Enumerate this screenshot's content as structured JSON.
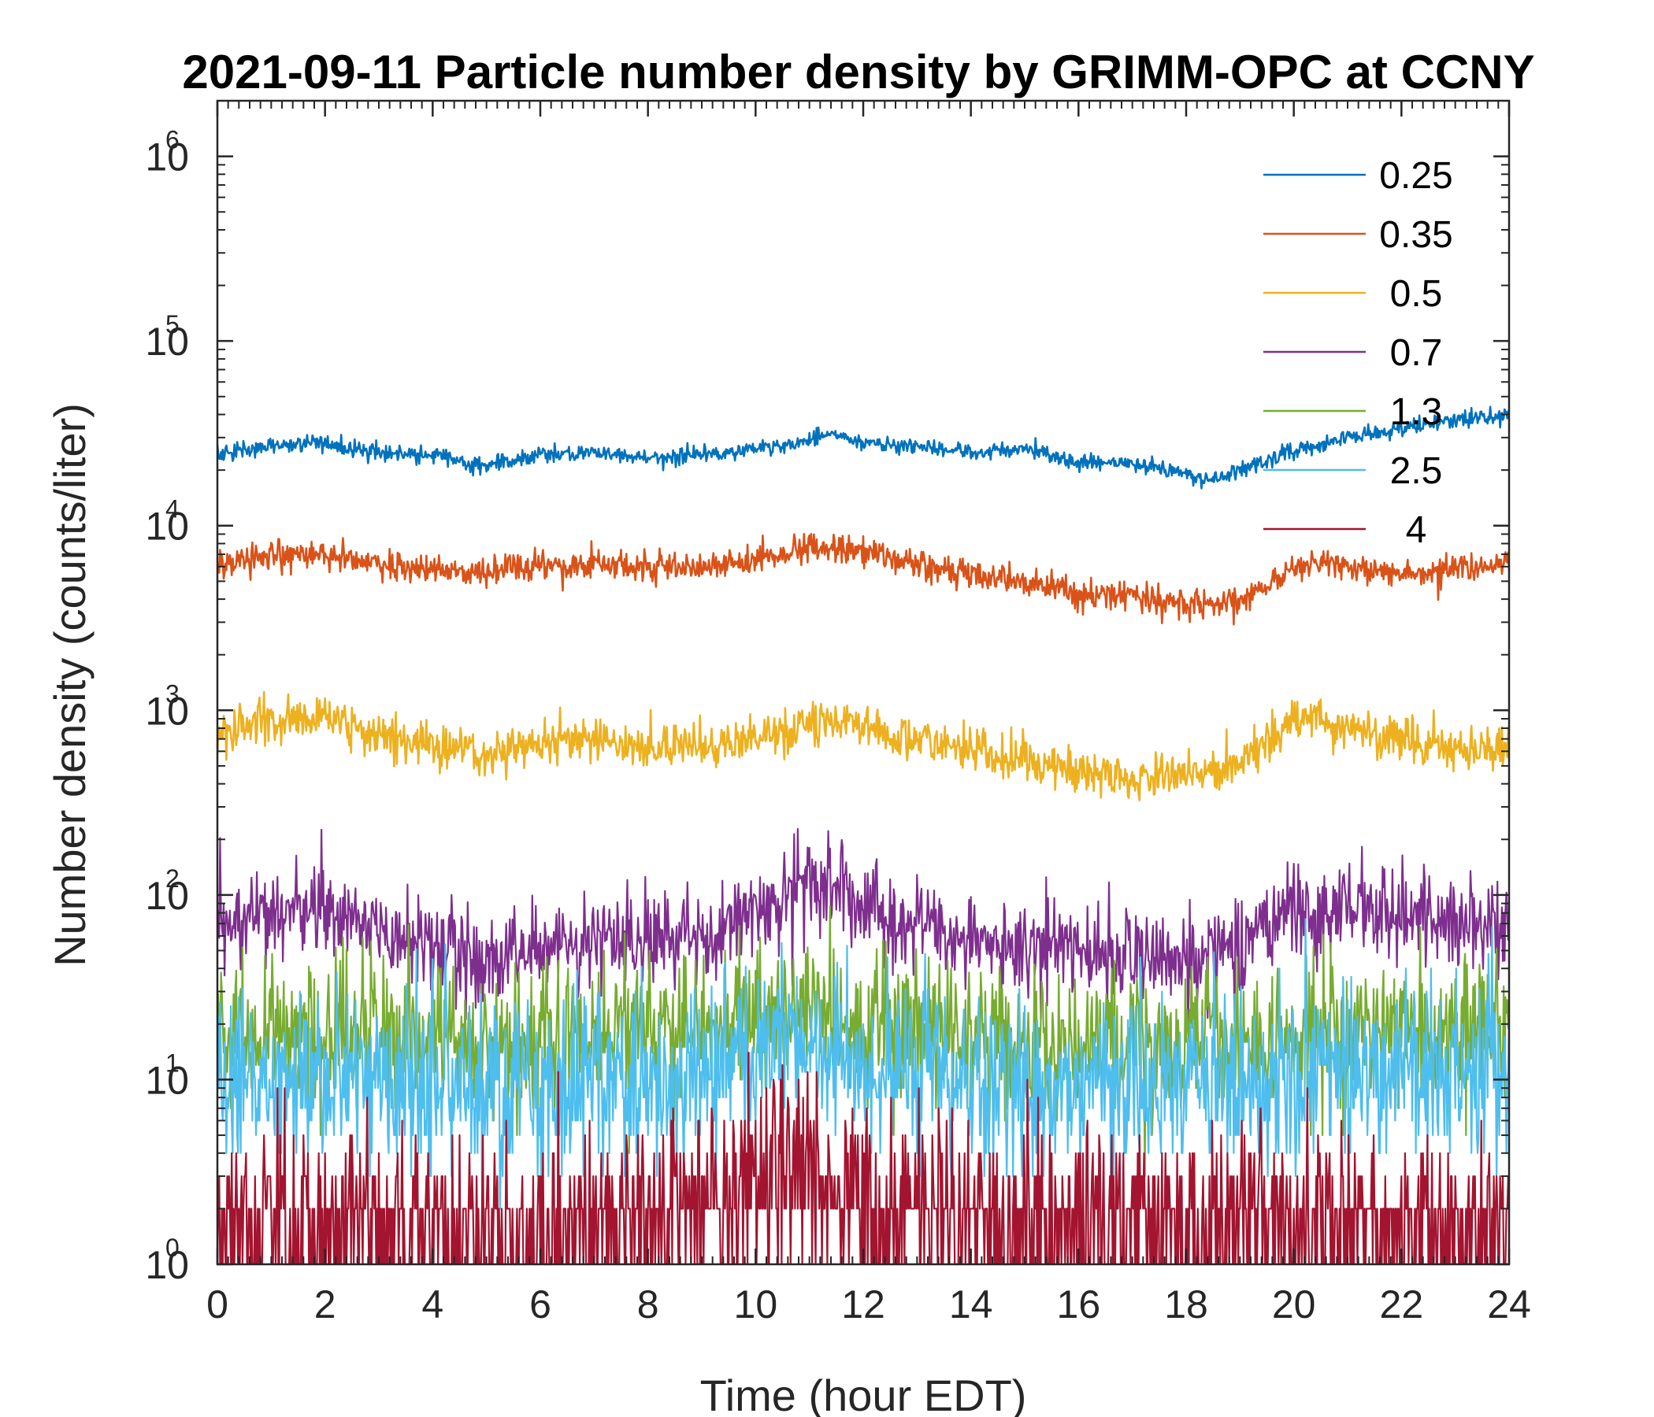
{
  "chart_data": {
    "type": "line",
    "title": "2021-09-11 Particle number density by GRIMM-OPC at CCNY",
    "xlabel": "Time (hour EDT)",
    "ylabel": "Number density (counts/liter)",
    "yscale": "log",
    "xlim": [
      0,
      24
    ],
    "ylim": [
      1,
      2000000
    ],
    "xticks": [
      0,
      2,
      4,
      6,
      8,
      10,
      12,
      14,
      16,
      18,
      20,
      22,
      24
    ],
    "yticks": [
      {
        "value": 1,
        "base": "10",
        "exp": "0"
      },
      {
        "value": 10,
        "base": "10",
        "exp": "1"
      },
      {
        "value": 100,
        "base": "10",
        "exp": "2"
      },
      {
        "value": 1000,
        "base": "10",
        "exp": "3"
      },
      {
        "value": 10000,
        "base": "10",
        "exp": "4"
      },
      {
        "value": 100000,
        "base": "10",
        "exp": "5"
      },
      {
        "value": 1000000,
        "base": "10",
        "exp": "6"
      }
    ],
    "legend_position": "top-right",
    "series": [
      {
        "name": "0.25",
        "color": "#0072BD",
        "x": [
          0,
          1,
          2,
          3,
          4,
          5,
          6,
          7,
          8,
          9,
          10,
          11,
          11.5,
          12,
          13,
          14,
          15,
          16,
          17,
          18,
          18.5,
          19,
          20,
          21,
          22,
          23,
          24
        ],
        "y": [
          24000,
          27000,
          28000,
          25000,
          24000,
          21000,
          24000,
          25000,
          23000,
          24000,
          26000,
          29000,
          32000,
          28000,
          27000,
          25000,
          26000,
          22000,
          22000,
          19000,
          18000,
          20000,
          25000,
          30000,
          33000,
          38000,
          39000
        ],
        "noise": 0.05
      },
      {
        "name": "0.35",
        "color": "#D95319",
        "x": [
          0,
          1,
          2,
          3,
          4,
          5,
          6,
          7,
          8,
          9,
          10,
          11,
          11.5,
          12,
          13,
          14,
          15,
          16,
          17,
          18,
          19,
          20,
          20.5,
          21,
          22,
          23,
          24
        ],
        "y": [
          6000,
          7000,
          7000,
          6200,
          5800,
          5500,
          6000,
          6200,
          6000,
          6000,
          6500,
          7500,
          7500,
          7200,
          6200,
          5500,
          5000,
          4300,
          4200,
          3800,
          3800,
          6000,
          6500,
          6000,
          5500,
          5800,
          6500
        ],
        "noise": 0.09
      },
      {
        "name": "0.5",
        "color": "#EDB120",
        "x": [
          0,
          1,
          2,
          3,
          4,
          5,
          6,
          7,
          8,
          9,
          10,
          11,
          11.5,
          12,
          13,
          14,
          15,
          16,
          17,
          18,
          19,
          20,
          20.5,
          21,
          22,
          23,
          24
        ],
        "y": [
          750,
          850,
          950,
          700,
          650,
          580,
          650,
          700,
          620,
          650,
          720,
          850,
          900,
          800,
          700,
          600,
          550,
          480,
          440,
          450,
          520,
          900,
          950,
          800,
          700,
          620,
          620
        ],
        "noise": 0.14
      },
      {
        "name": "0.7",
        "color": "#7E2F8E",
        "x": [
          0,
          1,
          2,
          3,
          4,
          5,
          6,
          7,
          8,
          9,
          10,
          11,
          11.5,
          12,
          13,
          14,
          15,
          16,
          17,
          18,
          19,
          20,
          21,
          22,
          23,
          24
        ],
        "y": [
          75,
          85,
          80,
          60,
          55,
          45,
          55,
          60,
          55,
          60,
          85,
          110,
          110,
          80,
          70,
          55,
          55,
          50,
          45,
          45,
          55,
          80,
          85,
          80,
          70,
          65
        ],
        "noise": 0.3
      },
      {
        "name": "1.3",
        "color": "#77AC30",
        "x": [
          0,
          2,
          4,
          6,
          8,
          10,
          11,
          12,
          14,
          16,
          18,
          20,
          22,
          24
        ],
        "y": [
          18,
          18,
          17,
          16,
          18,
          22,
          24,
          20,
          17,
          16,
          16,
          18,
          19,
          18
        ],
        "noise": 0.45
      },
      {
        "name": "2.5",
        "color": "#4DBEEE",
        "x": [
          0,
          2,
          4,
          6,
          8,
          10,
          11,
          12,
          14,
          16,
          18,
          20,
          22,
          24
        ],
        "y": [
          10,
          10,
          10,
          9,
          10,
          14,
          16,
          12,
          10,
          9,
          9,
          10,
          11,
          10
        ],
        "noise": 0.55
      },
      {
        "name": "4",
        "color": "#A2142F",
        "x": [
          0,
          2,
          4,
          6,
          8,
          10,
          11,
          12,
          14,
          16,
          18,
          20,
          22,
          24
        ],
        "y": [
          1.7,
          1.7,
          1.6,
          1.6,
          1.8,
          2.8,
          3.2,
          2.2,
          1.7,
          1.6,
          1.6,
          1.7,
          1.8,
          1.7
        ],
        "noise": 0.6
      }
    ]
  }
}
